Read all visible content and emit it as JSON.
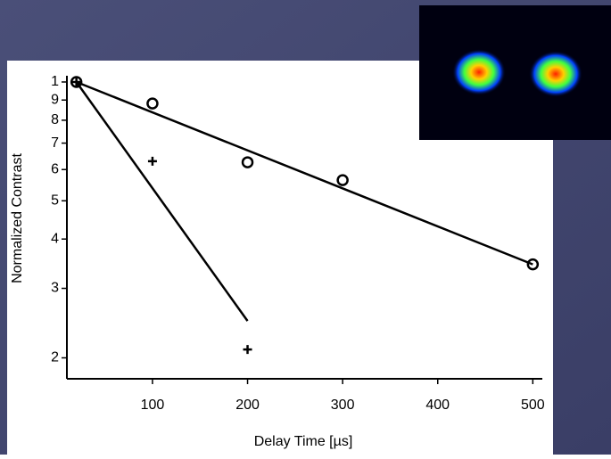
{
  "chart_data": {
    "type": "scatter",
    "log_y": true,
    "x_label": "Delay Time  [µs]",
    "y_label": "Normalized Contrast",
    "xlim": [
      10,
      510
    ],
    "ylim": [
      0.177,
      1.037
    ],
    "xticks": [
      100,
      200,
      300,
      400,
      500
    ],
    "yticks": [
      1,
      {
        "value": 0.9,
        "label": "9"
      },
      {
        "value": 0.8,
        "label": "8"
      },
      {
        "value": 0.7,
        "label": "7"
      },
      {
        "value": 0.6,
        "label": "6"
      },
      {
        "value": 0.5,
        "label": "5"
      },
      {
        "value": 0.4,
        "label": "4"
      },
      {
        "value": 0.3,
        "label": "3"
      },
      {
        "value": 0.2,
        "label": "2"
      }
    ],
    "series": [
      {
        "mode": "markers",
        "marker": "circle",
        "color": "#000000",
        "x": [
          20,
          100,
          200,
          300,
          500
        ],
        "values": [
          1,
          0.882,
          0.626,
          0.564,
          0.345
        ]
      },
      {
        "mode": "markers",
        "marker": "plus",
        "color": "#000000",
        "x": [
          20,
          100,
          200
        ],
        "values": [
          1,
          0.63,
          0.21
        ]
      },
      {
        "mode": "line",
        "color": "#000000",
        "x": [
          20,
          500
        ],
        "values": [
          1,
          0.345
        ]
      },
      {
        "mode": "line",
        "color": "#000000",
        "x": [
          20,
          200
        ],
        "values": [
          1,
          0.248
        ]
      }
    ]
  }
}
